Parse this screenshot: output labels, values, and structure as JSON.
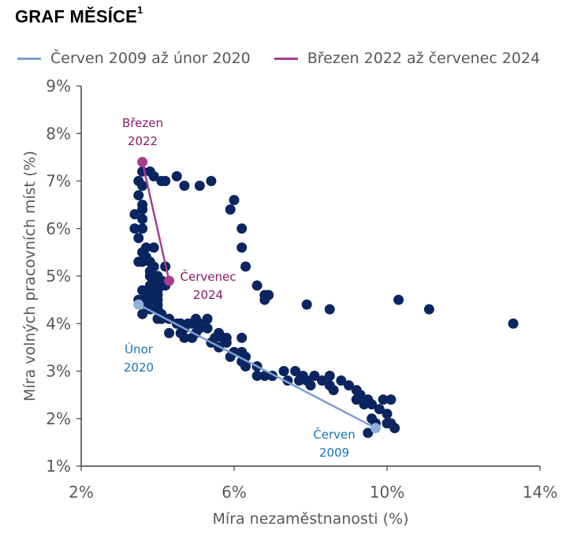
{
  "header": {
    "title": "GRAF MĚSÍCE",
    "footnote_marker": "1"
  },
  "chart_data": {
    "type": "scatter",
    "xlabel": "Míra nezaměstnanosti (%)",
    "ylabel": "Míra volných pracovních míst (%)",
    "xlim": [
      2,
      14
    ],
    "ylim": [
      1,
      9
    ],
    "xticks": [
      2,
      6,
      10,
      14
    ],
    "yticks": [
      1,
      2,
      3,
      4,
      5,
      6,
      7,
      8,
      9
    ],
    "xtick_labels": [
      "2%",
      "6%",
      "10%",
      "14%"
    ],
    "ytick_labels": [
      "1%",
      "2%",
      "3%",
      "4%",
      "5%",
      "6%",
      "7%",
      "8%",
      "9%"
    ],
    "grid": false,
    "legend_position": "top",
    "colors": {
      "points": "#0b2560",
      "line_2009": "#7b9fd0",
      "line_2022": "#a63d8f",
      "annotation_2009": "#1a73b8",
      "annotation_2022": "#8b1a6b",
      "endpoint_2009": "#8fb0dc"
    },
    "series": [
      {
        "name": "Červen 2009 až únor 2020",
        "line": {
          "x": [
            9.7,
            3.5
          ],
          "y": [
            1.8,
            4.4
          ]
        },
        "start_label": [
          "Červen",
          "2009"
        ],
        "end_label": [
          "Únor",
          "2020"
        ]
      },
      {
        "name": "Březen 2022 až červenec 2024",
        "line": {
          "x": [
            3.6,
            4.3
          ],
          "y": [
            7.4,
            4.9
          ]
        },
        "start_label": [
          "Březen",
          "2022"
        ],
        "end_label": [
          "Červenec",
          "2024"
        ]
      }
    ],
    "points": [
      [
        3.6,
        7.2
      ],
      [
        3.5,
        7.0
      ],
      [
        3.6,
        6.9
      ],
      [
        3.5,
        6.7
      ],
      [
        3.6,
        6.5
      ],
      [
        3.6,
        6.4
      ],
      [
        3.6,
        6.2
      ],
      [
        3.4,
        6.3
      ],
      [
        3.4,
        6.0
      ],
      [
        3.6,
        6.0
      ],
      [
        3.5,
        5.8
      ],
      [
        3.7,
        5.6
      ],
      [
        3.6,
        5.5
      ],
      [
        3.7,
        5.4
      ],
      [
        3.6,
        5.3
      ],
      [
        3.8,
        5.3
      ],
      [
        3.5,
        5.3
      ],
      [
        3.9,
        5.2
      ],
      [
        3.8,
        5.0
      ],
      [
        3.9,
        4.9
      ],
      [
        4.0,
        4.9
      ],
      [
        4.1,
        4.9
      ],
      [
        3.8,
        4.8
      ],
      [
        3.6,
        4.7
      ],
      [
        3.8,
        4.7
      ],
      [
        3.9,
        4.7
      ],
      [
        4.0,
        4.7
      ],
      [
        3.7,
        4.6
      ],
      [
        3.9,
        4.6
      ],
      [
        4.0,
        4.6
      ],
      [
        3.6,
        4.5
      ],
      [
        3.8,
        4.5
      ],
      [
        4.0,
        4.5
      ],
      [
        3.5,
        4.5
      ],
      [
        3.7,
        4.4
      ],
      [
        4.0,
        4.4
      ],
      [
        3.8,
        4.3
      ],
      [
        4.0,
        4.3
      ],
      [
        4.1,
        4.2
      ],
      [
        3.6,
        4.2
      ],
      [
        4.0,
        4.1
      ],
      [
        4.1,
        4.1
      ],
      [
        4.3,
        4.1
      ],
      [
        4.5,
        4.0
      ],
      [
        4.6,
        4.0
      ],
      [
        4.7,
        3.9
      ],
      [
        4.8,
        4.0
      ],
      [
        4.9,
        4.0
      ],
      [
        5.0,
        4.1
      ],
      [
        5.1,
        4.0
      ],
      [
        5.3,
        4.1
      ],
      [
        4.3,
        3.8
      ],
      [
        4.6,
        3.8
      ],
      [
        4.7,
        3.7
      ],
      [
        4.9,
        3.7
      ],
      [
        5.0,
        3.8
      ],
      [
        5.1,
        3.9
      ],
      [
        5.3,
        3.9
      ],
      [
        5.5,
        3.7
      ],
      [
        5.4,
        3.6
      ],
      [
        5.6,
        3.8
      ],
      [
        5.7,
        3.7
      ],
      [
        5.8,
        3.7
      ],
      [
        5.6,
        3.5
      ],
      [
        5.8,
        3.6
      ],
      [
        6.0,
        3.4
      ],
      [
        6.2,
        3.4
      ],
      [
        6.2,
        3.7
      ],
      [
        6.3,
        3.3
      ],
      [
        5.9,
        3.3
      ],
      [
        6.2,
        3.2
      ],
      [
        6.3,
        3.1
      ],
      [
        6.6,
        3.1
      ],
      [
        6.6,
        2.9
      ],
      [
        6.8,
        2.9
      ],
      [
        7.0,
        2.9
      ],
      [
        7.3,
        3.0
      ],
      [
        7.4,
        2.8
      ],
      [
        7.6,
        3.0
      ],
      [
        7.8,
        2.9
      ],
      [
        7.9,
        2.8
      ],
      [
        8.1,
        2.9
      ],
      [
        8.3,
        2.8
      ],
      [
        8.5,
        2.9
      ],
      [
        7.7,
        2.8
      ],
      [
        8.0,
        2.7
      ],
      [
        8.5,
        2.7
      ],
      [
        8.8,
        2.8
      ],
      [
        8.6,
        2.6
      ],
      [
        9.0,
        2.7
      ],
      [
        9.2,
        2.6
      ],
      [
        9.3,
        2.5
      ],
      [
        9.5,
        2.4
      ],
      [
        9.2,
        2.4
      ],
      [
        9.4,
        2.3
      ],
      [
        9.6,
        2.3
      ],
      [
        9.8,
        2.2
      ],
      [
        9.9,
        2.4
      ],
      [
        10.1,
        2.4
      ],
      [
        10.0,
        2.1
      ],
      [
        9.6,
        2.0
      ],
      [
        9.7,
        1.9
      ],
      [
        10.0,
        1.9
      ],
      [
        10.1,
        1.9
      ],
      [
        9.5,
        1.7
      ],
      [
        10.2,
        1.8
      ],
      [
        3.8,
        7.2
      ],
      [
        3.9,
        7.1
      ],
      [
        4.1,
        7.0
      ],
      [
        4.2,
        7.0
      ],
      [
        4.5,
        7.1
      ],
      [
        4.7,
        6.9
      ],
      [
        5.1,
        6.9
      ],
      [
        5.4,
        7.0
      ],
      [
        6.0,
        6.6
      ],
      [
        5.9,
        6.4
      ],
      [
        6.2,
        6.0
      ],
      [
        6.2,
        5.6
      ],
      [
        6.3,
        5.2
      ],
      [
        6.6,
        4.8
      ],
      [
        6.8,
        4.6
      ],
      [
        6.9,
        4.6
      ],
      [
        6.8,
        4.5
      ],
      [
        7.9,
        4.4
      ],
      [
        8.5,
        4.3
      ],
      [
        10.3,
        4.5
      ],
      [
        11.1,
        4.3
      ],
      [
        13.3,
        4.0
      ],
      [
        4.1,
        4.8
      ],
      [
        4.2,
        4.8
      ],
      [
        3.9,
        4.9
      ],
      [
        4.0,
        5.0
      ],
      [
        3.8,
        5.1
      ],
      [
        4.2,
        5.2
      ],
      [
        3.9,
        5.6
      ]
    ]
  }
}
